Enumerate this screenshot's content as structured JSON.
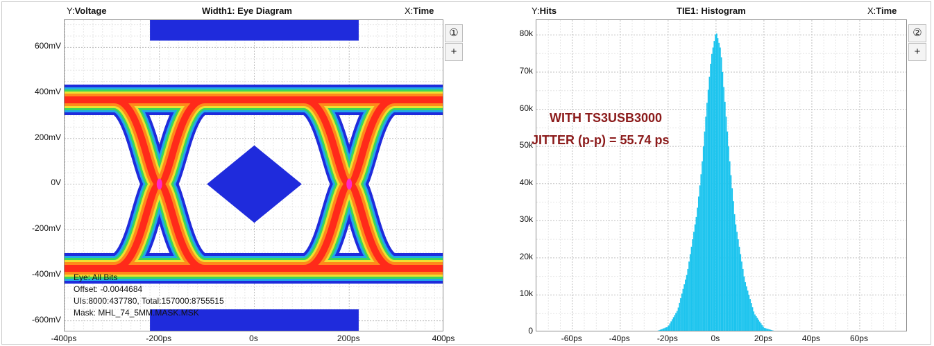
{
  "left_panel": {
    "title": "Width1: Eye Diagram",
    "y_head_prefix": "Y:",
    "y_head": "Voltage",
    "x_head_prefix": "X:",
    "x_head": "Time",
    "button_1": "①",
    "button_plus": "+",
    "info": [
      "Eye: All Bits",
      "Offset: -0.0044684",
      "UIs:8000:437780, Total:157000:8755515",
      "Mask: MHL_74_5MM.MASK.MSK"
    ]
  },
  "right_panel": {
    "title": "TIE1: Histogram",
    "y_head_prefix": "Y:",
    "y_head": "Hits",
    "x_head_prefix": "X:",
    "x_head": "Time",
    "button_2": "②",
    "button_plus": "+",
    "annotation_line1": "WITH TS3USB3000",
    "annotation_line2": "JITTER (p-p) = 55.74 ps"
  },
  "chart_data": [
    {
      "type": "scatter",
      "title": "Width1: Eye Diagram",
      "xlabel": "Time",
      "ylabel": "Voltage",
      "x_ticks": [
        "-400ps",
        "-200ps",
        "0s",
        "200ps",
        "400ps"
      ],
      "y_ticks": [
        "600mV",
        "400mV",
        "200mV",
        "0V",
        "-200mV",
        "-400mV",
        "-600mV"
      ],
      "xlim": [
        -400,
        400
      ],
      "ylim": [
        -650,
        720
      ],
      "x_unit": "ps",
      "y_unit": "mV",
      "high_level_mV": 370,
      "low_level_mV": -370,
      "crossings_ps": [
        -200,
        200
      ],
      "mask_center_diamond": {
        "x_range_ps": [
          -100,
          100
        ],
        "y_range_mV": [
          -170,
          170
        ]
      },
      "mask_top_band": {
        "x_range_ps": [
          -220,
          220
        ],
        "y_range_mV": [
          630,
          720
        ]
      },
      "mask_bottom_band": {
        "x_range_ps": [
          -220,
          220
        ],
        "y_range_mV": [
          -650,
          -550
        ]
      },
      "colors": {
        "mask": "#1f2bdc",
        "outer": "#1f2bdc",
        "mid1": "#22a8e8",
        "mid2": "#3bd65a",
        "mid3": "#f0e030",
        "mid4": "#ff8a1a",
        "core": "#ff2a1a",
        "hot": "#ff28c8"
      },
      "grid": true
    },
    {
      "type": "bar",
      "title": "TIE1: Histogram",
      "xlabel": "Time",
      "ylabel": "Hits",
      "x_ticks": [
        "-60ps",
        "-40ps",
        "-20ps",
        "0s",
        "20ps",
        "40ps",
        "60ps"
      ],
      "y_ticks": [
        "80k",
        "70k",
        "60k",
        "50k",
        "40k",
        "30k",
        "20k",
        "10k",
        "0"
      ],
      "xlim": [
        -75,
        80
      ],
      "ylim": [
        0,
        84000
      ],
      "x": [
        -30,
        -25,
        -20,
        -16,
        -12,
        -8,
        -6,
        -4,
        -2,
        0,
        2,
        4,
        6,
        8,
        12,
        16,
        20,
        25,
        30
      ],
      "values": [
        0,
        200,
        1500,
        6000,
        16000,
        32000,
        44000,
        60000,
        74000,
        81000,
        76000,
        60000,
        44000,
        30000,
        14000,
        5000,
        1200,
        200,
        0
      ],
      "color": "#1cc4ee",
      "grid": true
    }
  ]
}
